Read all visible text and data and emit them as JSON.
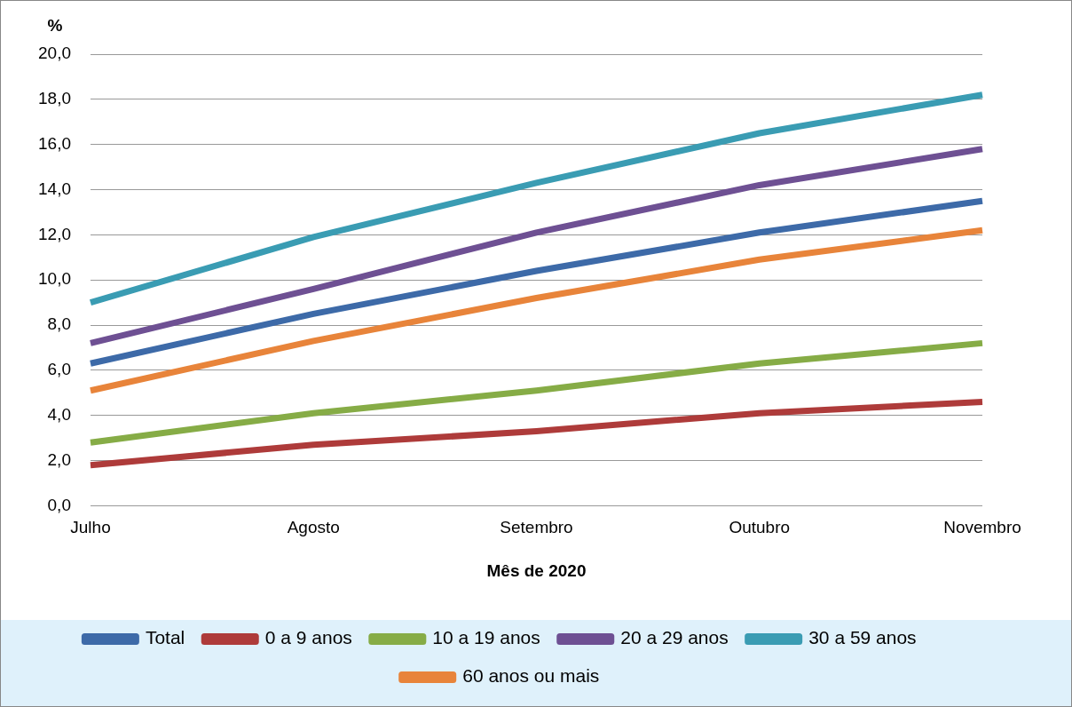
{
  "chart_data": {
    "type": "line",
    "xlabel": "Mês de 2020",
    "ylabel": "%",
    "categories": [
      "Julho",
      "Agosto",
      "Setembro",
      "Outubro",
      "Novembro"
    ],
    "series": [
      {
        "name": "Total",
        "color": "#3d6aa8",
        "values": [
          6.3,
          8.5,
          10.4,
          12.1,
          13.5
        ]
      },
      {
        "name": "0 a 9 anos",
        "color": "#ae3b3a",
        "values": [
          1.8,
          2.7,
          3.3,
          4.1,
          4.6
        ]
      },
      {
        "name": "10 a 19 anos",
        "color": "#86ac46",
        "values": [
          2.8,
          4.1,
          5.1,
          6.3,
          7.2
        ]
      },
      {
        "name": "20 a 29 anos",
        "color": "#6e5093",
        "values": [
          7.2,
          9.6,
          12.1,
          14.2,
          15.8
        ]
      },
      {
        "name": "30 a 59 anos",
        "color": "#3a9cb3",
        "values": [
          9.0,
          11.9,
          14.3,
          16.5,
          18.2
        ]
      },
      {
        "name": "60 anos ou mais",
        "color": "#e8843a",
        "values": [
          5.1,
          7.3,
          9.2,
          10.9,
          12.2
        ]
      }
    ],
    "ylim": [
      0,
      20
    ],
    "yticks": [
      {
        "value": 0,
        "label": "0,0"
      },
      {
        "value": 2,
        "label": "2,0"
      },
      {
        "value": 4,
        "label": "4,0"
      },
      {
        "value": 6,
        "label": "6,0"
      },
      {
        "value": 8,
        "label": "8,0"
      },
      {
        "value": 10,
        "label": "10,0"
      },
      {
        "value": 12,
        "label": "12,0"
      },
      {
        "value": 14,
        "label": "14,0"
      },
      {
        "value": 16,
        "label": "16,0"
      },
      {
        "value": 18,
        "label": "18,0"
      },
      {
        "value": 20,
        "label": "20,0"
      }
    ],
    "grid": "y",
    "legend": "bottom",
    "marker": "none",
    "line_style": "solid"
  }
}
